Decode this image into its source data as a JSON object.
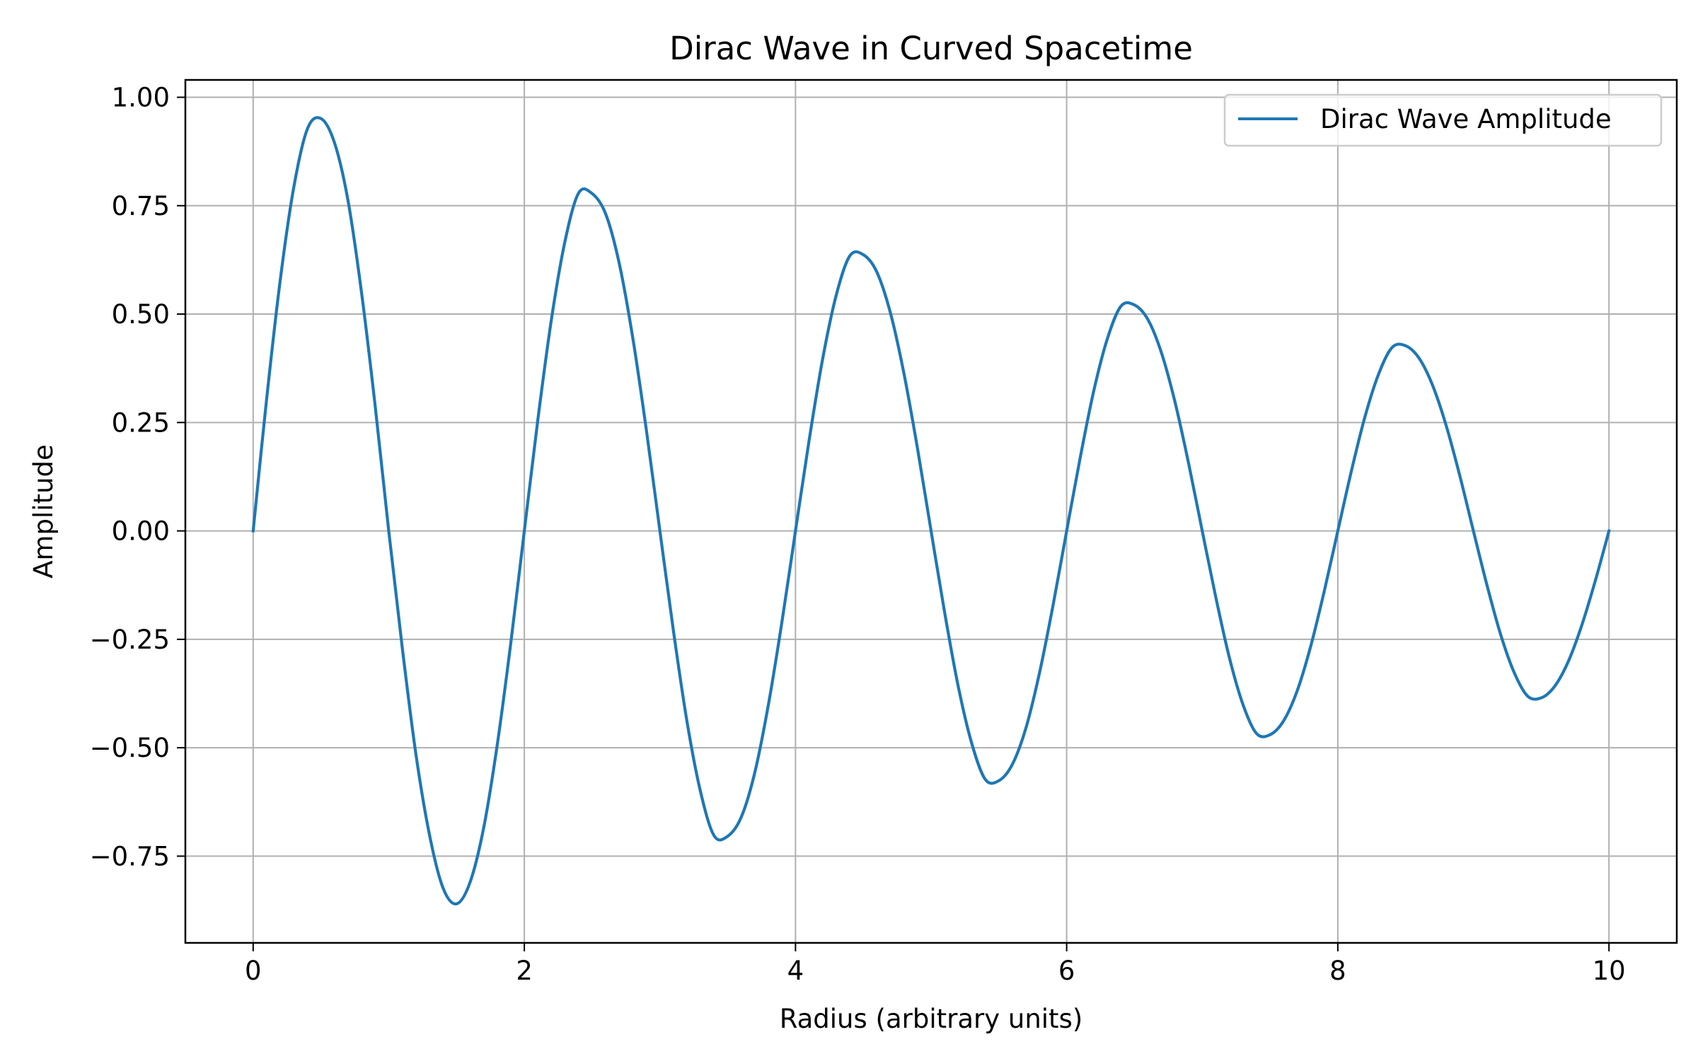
{
  "chart_data": {
    "type": "line",
    "title": "Dirac Wave in Curved Spacetime",
    "xlabel": "Radius (arbitrary units)",
    "ylabel": "Amplitude",
    "xlim": [
      -0.5,
      10.5
    ],
    "ylim": [
      -0.95,
      1.04
    ],
    "x_ticks": [
      0,
      2,
      4,
      6,
      8,
      10
    ],
    "x_tick_labels": [
      "0",
      "2",
      "4",
      "6",
      "8",
      "10"
    ],
    "y_ticks": [
      1.0,
      0.75,
      0.5,
      0.25,
      0.0,
      -0.25,
      -0.5,
      -0.75
    ],
    "y_tick_labels": [
      "1.00",
      "0.75",
      "0.50",
      "0.25",
      "0.00",
      "−0.25",
      "−0.50",
      "−0.75"
    ],
    "grid": true,
    "legend_position": "top-right",
    "series": [
      {
        "name": "Dirac Wave Amplitude",
        "color": "#1f77b4",
        "x": [
          0,
          0.1,
          0.2,
          0.3,
          0.4,
          0.5,
          0.6,
          0.7,
          0.8,
          0.9,
          1.0,
          1.1,
          1.2,
          1.3,
          1.4,
          1.5,
          1.6,
          1.7,
          1.8,
          1.9,
          2.0,
          2.1,
          2.2,
          2.3,
          2.4,
          2.5,
          2.6,
          2.7,
          2.8,
          2.9,
          3.0,
          3.1,
          3.2,
          3.3,
          3.4,
          3.5,
          3.6,
          3.7,
          3.8,
          3.9,
          4.0,
          4.1,
          4.2,
          4.3,
          4.4,
          4.5,
          4.6,
          4.7,
          4.8,
          4.9,
          5.0,
          5.1,
          5.2,
          5.3,
          5.4,
          5.5,
          5.6,
          5.7,
          5.8,
          5.9,
          6.0,
          6.1,
          6.2,
          6.3,
          6.4,
          6.5,
          6.6,
          6.7,
          6.8,
          6.9,
          7.0,
          7.1,
          7.2,
          7.3,
          7.4,
          7.5,
          7.6,
          7.7,
          7.8,
          7.9,
          8.0,
          8.1,
          8.2,
          8.3,
          8.4,
          8.5,
          8.6,
          8.7,
          8.8,
          8.9,
          9.0,
          9.1,
          9.2,
          9.3,
          9.4,
          9.5,
          9.6,
          9.7,
          9.8,
          9.9,
          10.0
        ],
        "y": [
          0,
          0.306,
          0.579,
          0.793,
          0.927,
          0.951,
          0.895,
          0.761,
          0.548,
          0.288,
          0,
          -0.27,
          -0.514,
          -0.7,
          -0.823,
          -0.86,
          -0.81,
          -0.685,
          -0.494,
          -0.259,
          0,
          0.257,
          0.488,
          0.668,
          0.779,
          0.778,
          0.731,
          0.617,
          0.445,
          0.233,
          0,
          -0.231,
          -0.44,
          -0.602,
          -0.703,
          -0.704,
          -0.66,
          -0.557,
          -0.401,
          -0.21,
          0,
          0.208,
          0.396,
          0.543,
          0.634,
          0.637,
          0.597,
          0.503,
          0.363,
          0.19,
          0,
          -0.188,
          -0.358,
          -0.49,
          -0.573,
          -0.576,
          -0.538,
          -0.454,
          -0.327,
          -0.171,
          0,
          0.169,
          0.323,
          0.443,
          0.518,
          0.521,
          0.487,
          0.41,
          0.296,
          0.155,
          0,
          -0.153,
          -0.292,
          -0.4,
          -0.467,
          -0.47,
          -0.438,
          -0.369,
          -0.266,
          -0.139,
          0,
          0.138,
          0.263,
          0.361,
          0.423,
          0.427,
          0.398,
          0.335,
          0.242,
          0.127,
          0,
          -0.125,
          -0.238,
          -0.326,
          -0.381,
          -0.385,
          -0.358,
          -0.301,
          -0.217,
          -0.114,
          0
        ]
      }
    ]
  }
}
